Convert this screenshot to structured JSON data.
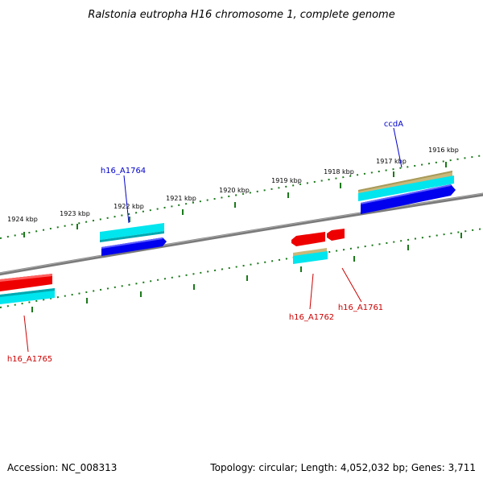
{
  "title": "Ralstonia eutropha H16 chromosome 1, complete genome",
  "accession": "Accession: NC_008313",
  "summary": "Topology: circular; Length: 4,052,032 bp; Genes: 3,711",
  "colors": {
    "backbone": "#888888",
    "ticks": "#1a7a1a",
    "cds_forward": "#0000ee",
    "cds_reverse": "#ee0000",
    "feature": "#00e5ee",
    "feature_alt": "#c8b87a",
    "label_forward": "#0000cc",
    "label_reverse": "#cc0000"
  },
  "scale": {
    "unit": "kbp",
    "labels": [
      "1924 kbp",
      "1923 kbp",
      "1922 kbp",
      "1921 kbp",
      "1920 kbp",
      "1919 kbp",
      "1918 kbp",
      "1917 kbp",
      "1916 kbp"
    ]
  },
  "genes": [
    {
      "name": "h16_A1764",
      "strand": "forward"
    },
    {
      "name": "ccdA",
      "strand": "forward"
    },
    {
      "name": "h16_A1765",
      "strand": "reverse"
    },
    {
      "name": "h16_A1762",
      "strand": "reverse"
    },
    {
      "name": "h16_A1761",
      "strand": "reverse"
    }
  ]
}
